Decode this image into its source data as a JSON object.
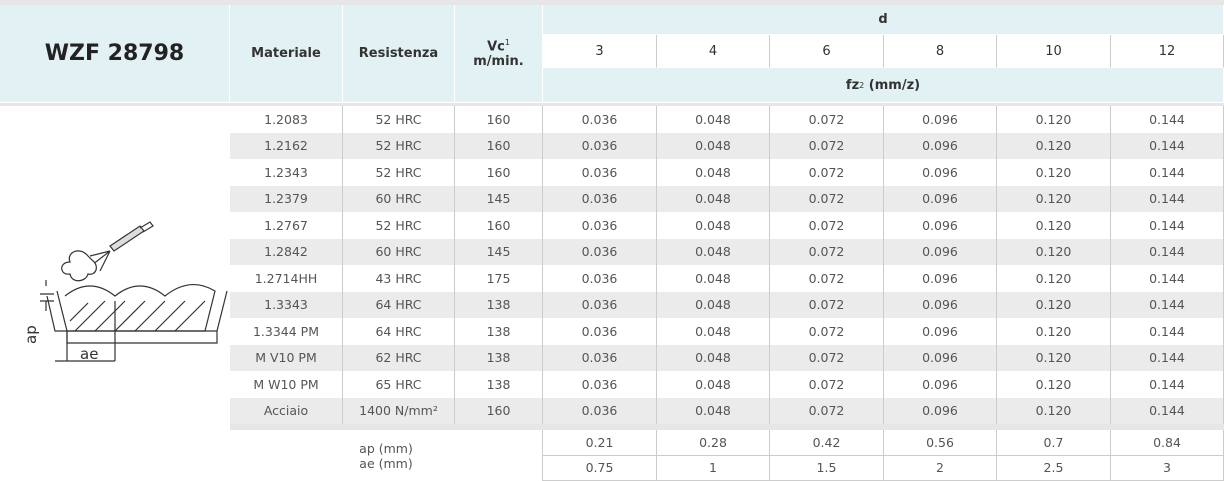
{
  "title": "WZF 28798",
  "header": {
    "materiale": "Materiale",
    "resistenza": "Resistenza",
    "vc": {
      "label": "Vc",
      "sup": "1",
      "unit": "m/min."
    },
    "d": "d",
    "diameters": [
      "3",
      "4",
      "6",
      "8",
      "10",
      "12"
    ],
    "fz": {
      "label": "fz",
      "sup": "2",
      "unit": "(mm/z)"
    }
  },
  "rows": [
    [
      "1.2083",
      "52 HRC",
      "160",
      "0.036",
      "0.048",
      "0.072",
      "0.096",
      "0.120",
      "0.144"
    ],
    [
      "1.2162",
      "52 HRC",
      "160",
      "0.036",
      "0.048",
      "0.072",
      "0.096",
      "0.120",
      "0.144"
    ],
    [
      "1.2343",
      "52 HRC",
      "160",
      "0.036",
      "0.048",
      "0.072",
      "0.096",
      "0.120",
      "0.144"
    ],
    [
      "1.2379",
      "60 HRC",
      "145",
      "0.036",
      "0.048",
      "0.072",
      "0.096",
      "0.120",
      "0.144"
    ],
    [
      "1.2767",
      "52 HRC",
      "160",
      "0.036",
      "0.048",
      "0.072",
      "0.096",
      "0.120",
      "0.144"
    ],
    [
      "1.2842",
      "60 HRC",
      "145",
      "0.036",
      "0.048",
      "0.072",
      "0.096",
      "0.120",
      "0.144"
    ],
    [
      "1.2714HH",
      "43 HRC",
      "175",
      "0.036",
      "0.048",
      "0.072",
      "0.096",
      "0.120",
      "0.144"
    ],
    [
      "1.3343",
      "64 HRC",
      "138",
      "0.036",
      "0.048",
      "0.072",
      "0.096",
      "0.120",
      "0.144"
    ],
    [
      "1.3344 PM",
      "64 HRC",
      "138",
      "0.036",
      "0.048",
      "0.072",
      "0.096",
      "0.120",
      "0.144"
    ],
    [
      "M V10 PM",
      "62 HRC",
      "138",
      "0.036",
      "0.048",
      "0.072",
      "0.096",
      "0.120",
      "0.144"
    ],
    [
      "M W10 PM",
      "65 HRC",
      "138",
      "0.036",
      "0.048",
      "0.072",
      "0.096",
      "0.120",
      "0.144"
    ],
    [
      "Acciaio",
      "1400 N/mm²",
      "160",
      "0.036",
      "0.048",
      "0.072",
      "0.096",
      "0.120",
      "0.144"
    ]
  ],
  "footer": [
    {
      "label": "ap (mm)",
      "values": [
        "0.21",
        "0.28",
        "0.42",
        "0.56",
        "0.7",
        "0.84"
      ]
    },
    {
      "label": "ae (mm)",
      "values": [
        "0.75",
        "1",
        "1.5",
        "2",
        "2.5",
        "3"
      ]
    }
  ],
  "illustration": {
    "ap": "ap",
    "ae": "ae"
  }
}
